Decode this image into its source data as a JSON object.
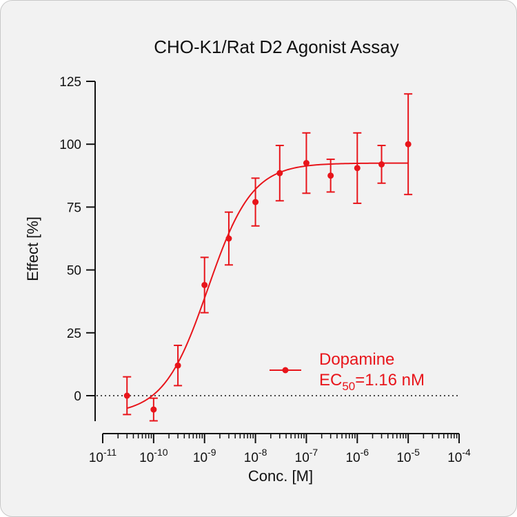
{
  "chart_data": {
    "type": "scatter",
    "title": "CHO-K1/Rat D2 Agonist Assay",
    "xlabel": "Conc. [M]",
    "ylabel": "Effect  [%]",
    "x_scale": "log",
    "xlim": [
      1e-11,
      0.0001
    ],
    "ylim": [
      -10,
      125
    ],
    "y_ticks": [
      0,
      25,
      50,
      75,
      100,
      125
    ],
    "x_ticks": [
      {
        "base": "10",
        "exp": "-11"
      },
      {
        "base": "10",
        "exp": "-10"
      },
      {
        "base": "10",
        "exp": "-9"
      },
      {
        "base": "10",
        "exp": "-8"
      },
      {
        "base": "10",
        "exp": "-7"
      },
      {
        "base": "10",
        "exp": "-6"
      },
      {
        "base": "10",
        "exp": "-5"
      },
      {
        "base": "10",
        "exp": "-4"
      }
    ],
    "color": "#e8151b",
    "series": [
      {
        "name": "Dopamine",
        "x": [
          3e-11,
          1e-10,
          3e-10,
          1e-09,
          3e-09,
          1e-08,
          3e-08,
          1e-07,
          3e-07,
          1e-06,
          3e-06,
          1e-05
        ],
        "y": [
          0,
          -5.5,
          12,
          44,
          62.5,
          77,
          88.5,
          92.5,
          87.5,
          90.5,
          92,
          100
        ],
        "error": [
          7.5,
          4.5,
          8,
          11,
          10.5,
          9.5,
          11,
          12,
          6.5,
          14,
          7.5,
          20
        ]
      }
    ],
    "fit": {
      "bottom": -7.5,
      "top": 92.5,
      "ec50": 1.16e-09,
      "hill": 1.0
    },
    "zero_line": "dotted",
    "legend": {
      "position": "bottom-right",
      "entry": "Dopamine",
      "ec50_prefix": "EC",
      "ec50_sub": "50",
      "ec50_value": "=1.16 nM"
    }
  }
}
